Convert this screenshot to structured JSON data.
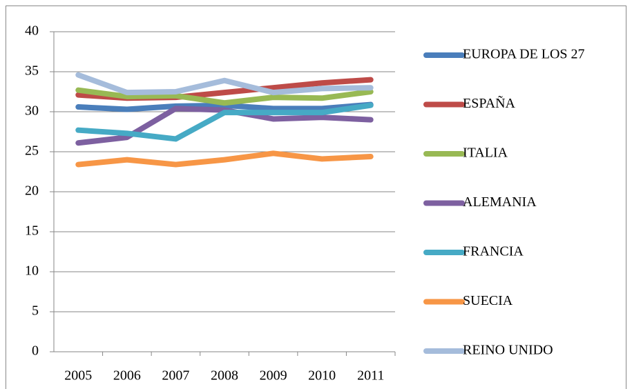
{
  "chart_data": {
    "type": "line",
    "categories": [
      "2005",
      "2006",
      "2007",
      "2008",
      "2009",
      "2010",
      "2011"
    ],
    "series": [
      {
        "name": "EUROPA DE LOS 27",
        "color": "#4a7ebb",
        "values": [
          30.6,
          30.3,
          30.7,
          30.8,
          30.4,
          30.4,
          30.9
        ]
      },
      {
        "name": "ESPAÑA",
        "color": "#be4b48",
        "values": [
          32.1,
          31.7,
          31.8,
          32.4,
          33.0,
          33.6,
          34.0
        ]
      },
      {
        "name": "ITALIA",
        "color": "#98b954",
        "values": [
          32.7,
          31.9,
          32.0,
          31.1,
          31.8,
          31.7,
          32.5
        ]
      },
      {
        "name": "ALEMANIA",
        "color": "#7d60a0",
        "values": [
          26.1,
          26.8,
          30.4,
          30.2,
          29.1,
          29.3,
          29.0
        ]
      },
      {
        "name": "FRANCIA",
        "color": "#46aac5",
        "values": [
          27.7,
          27.3,
          26.6,
          29.9,
          29.9,
          29.9,
          30.8
        ]
      },
      {
        "name": "SUECIA",
        "color": "#f79646",
        "values": [
          23.4,
          24.0,
          23.4,
          24.0,
          24.8,
          24.1,
          24.4
        ]
      },
      {
        "name": "REINO UNIDO",
        "color": "#a5bcdb",
        "values": [
          34.6,
          32.4,
          32.5,
          33.9,
          32.4,
          32.9,
          33.0
        ]
      }
    ],
    "ylim": [
      0,
      40
    ],
    "yticks": [
      0,
      5,
      10,
      15,
      20,
      25,
      30,
      35,
      40
    ],
    "grid": true,
    "legend": "right"
  }
}
